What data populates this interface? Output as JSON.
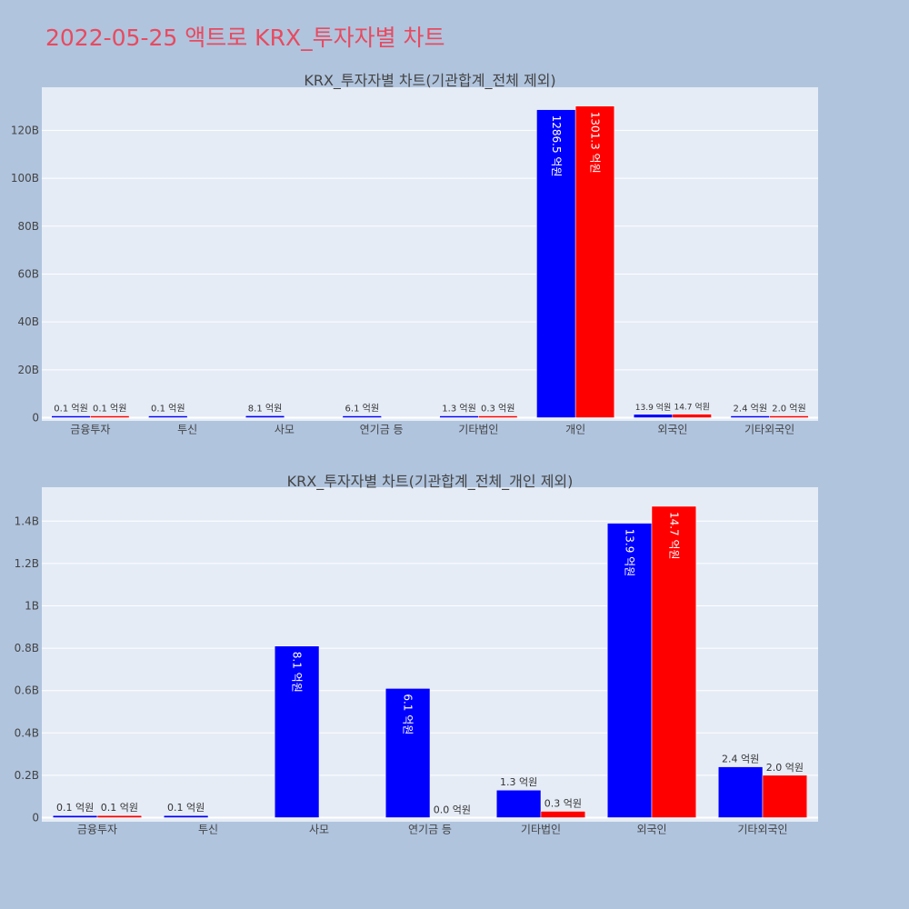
{
  "title": "2022-05-25 액트로 KRX_투자자별 차트",
  "colors": {
    "page_bg": "#b0c4de",
    "plot_bg": "#e5ecf6",
    "grid": "#ffffff",
    "title": "#e84a5f",
    "series_1": "#0000ff",
    "series_2": "#ff0000"
  },
  "chart_data": [
    {
      "type": "bar",
      "title": "KRX_투자자별 차트(기관합계_전체 제외)",
      "categories": [
        "금융투자",
        "투신",
        "사모",
        "연기금 등",
        "기타법인",
        "개인",
        "외국인",
        "기타외국인"
      ],
      "series": [
        {
          "values": [
            10000000,
            10000000,
            810000000,
            610000000,
            130000000,
            128650000000,
            1390000000,
            240000000
          ],
          "labels": [
            "0.1 억원",
            "0.1 억원",
            "8.1 억원",
            "6.1 억원",
            "1.3 억원",
            "1286.5 억원",
            "13.9 억원",
            "2.4 억원"
          ]
        },
        {
          "values": [
            10000000,
            null,
            null,
            null,
            30000000,
            130130000000,
            1470000000,
            200000000
          ],
          "labels": [
            "0.1 억원",
            null,
            null,
            null,
            "0.3 억원",
            "1301.3 억원",
            "14.7 억원",
            "2.0 억원"
          ]
        }
      ],
      "yticks": [
        0,
        20000000000,
        40000000000,
        60000000000,
        80000000000,
        100000000000,
        120000000000
      ],
      "ytick_labels": [
        "0",
        "20B",
        "40B",
        "60B",
        "80B",
        "100B",
        "120B"
      ],
      "ylim": [
        0,
        138000000000
      ],
      "grid": true
    },
    {
      "type": "bar",
      "title": "KRX_투자자별 차트(기관합계_전체_개인 제외)",
      "categories": [
        "금융투자",
        "투신",
        "사모",
        "연기금 등",
        "기타법인",
        "외국인",
        "기타외국인"
      ],
      "series": [
        {
          "values": [
            10000000,
            10000000,
            810000000,
            610000000,
            130000000,
            1390000000,
            240000000
          ],
          "labels": [
            "0.1 억원",
            "0.1 억원",
            "8.1 억원",
            "6.1 억원",
            "1.3 억원",
            "13.9 억원",
            "2.4 억원"
          ]
        },
        {
          "values": [
            10000000,
            null,
            null,
            0,
            30000000,
            1470000000,
            200000000
          ],
          "labels": [
            "0.1 억원",
            null,
            null,
            "0.0 억원",
            "0.3 억원",
            "14.7 억원",
            "2.0 억원"
          ]
        }
      ],
      "yticks": [
        0,
        200000000,
        400000000,
        600000000,
        800000000,
        1000000000,
        1200000000,
        1400000000
      ],
      "ytick_labels": [
        "0",
        "0.2B",
        "0.4B",
        "0.6B",
        "0.8B",
        "1B",
        "1.2B",
        "1.4B"
      ],
      "ylim": [
        0,
        1560000000
      ],
      "grid": true
    }
  ]
}
